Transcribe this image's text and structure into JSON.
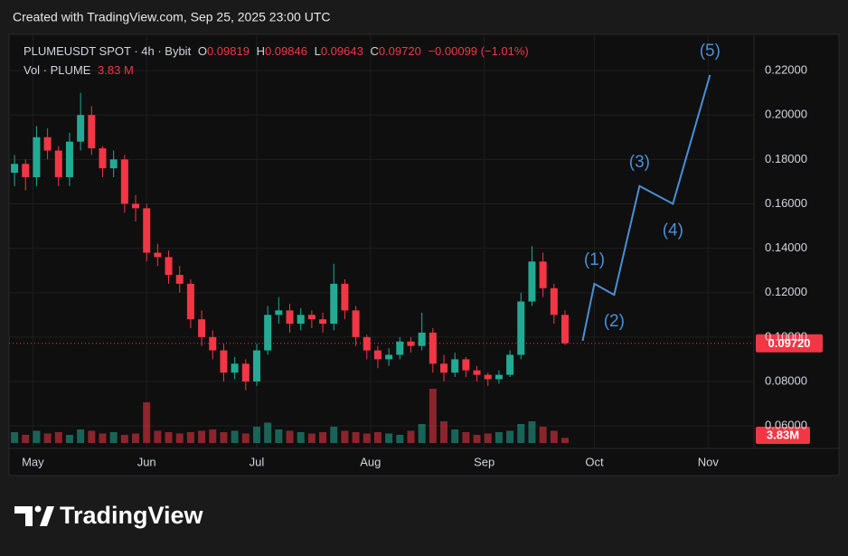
{
  "chart_data": {
    "type": "candlestick",
    "credit": "Created with TradingView.com, Sep 25, 2025 23:00 UTC",
    "symbol": "PLUMEUSDT SPOT · 4h · Bybit",
    "ohlc": [
      {
        "key": "O",
        "value": "0.09819"
      },
      {
        "key": "H",
        "value": "0.09846"
      },
      {
        "key": "L",
        "value": "0.09643"
      },
      {
        "key": "C",
        "value": "0.09720"
      }
    ],
    "change": "−0.00099 (−1.01%)",
    "volume_title": "Vol · PLUME",
    "volume_value": "3.83 M",
    "last_price_label": "0.09720",
    "last_volume_label": "3.83M",
    "brand": "TradingView",
    "up_color": "#22ab94",
    "down_color": "#f23645",
    "projection_color": "#4a8fd6",
    "x": [
      -5,
      -2,
      1,
      4,
      7,
      10,
      13,
      16,
      19,
      22,
      25,
      28,
      31,
      34,
      37,
      40,
      43,
      46,
      49,
      52,
      55,
      58,
      61,
      64,
      67,
      70,
      73,
      76,
      79,
      82,
      85,
      88,
      91,
      94,
      97,
      100,
      103,
      106,
      109,
      112,
      115,
      118,
      121,
      124,
      127,
      130,
      133,
      136,
      139,
      142,
      145
    ],
    "open": [
      0.174,
      0.178,
      0.172,
      0.19,
      0.184,
      0.172,
      0.188,
      0.2,
      0.185,
      0.176,
      0.18,
      0.16,
      0.158,
      0.138,
      0.136,
      0.128,
      0.124,
      0.108,
      0.1,
      0.094,
      0.084,
      0.088,
      0.08,
      0.094,
      0.11,
      0.112,
      0.106,
      0.11,
      0.108,
      0.106,
      0.124,
      0.112,
      0.1,
      0.094,
      0.09,
      0.092,
      0.098,
      0.096,
      0.102,
      0.088,
      0.084,
      0.09,
      0.085,
      0.083,
      0.081,
      0.083,
      0.092,
      0.116,
      0.134,
      0.122,
      0.11
    ],
    "high": [
      0.182,
      0.18,
      0.195,
      0.194,
      0.186,
      0.192,
      0.21,
      0.204,
      0.186,
      0.184,
      0.182,
      0.164,
      0.16,
      0.142,
      0.139,
      0.132,
      0.126,
      0.112,
      0.103,
      0.097,
      0.091,
      0.09,
      0.097,
      0.114,
      0.118,
      0.115,
      0.113,
      0.112,
      0.111,
      0.133,
      0.126,
      0.114,
      0.101,
      0.096,
      0.095,
      0.1,
      0.1,
      0.111,
      0.104,
      0.092,
      0.093,
      0.091,
      0.087,
      0.084,
      0.085,
      0.094,
      0.12,
      0.141,
      0.138,
      0.124,
      0.112
    ],
    "low": [
      0.168,
      0.166,
      0.168,
      0.18,
      0.168,
      0.168,
      0.184,
      0.182,
      0.172,
      0.172,
      0.156,
      0.152,
      0.134,
      0.132,
      0.124,
      0.12,
      0.104,
      0.096,
      0.09,
      0.08,
      0.081,
      0.076,
      0.078,
      0.092,
      0.106,
      0.102,
      0.103,
      0.104,
      0.102,
      0.103,
      0.108,
      0.096,
      0.09,
      0.086,
      0.087,
      0.09,
      0.093,
      0.094,
      0.084,
      0.08,
      0.082,
      0.082,
      0.08,
      0.078,
      0.079,
      0.082,
      0.09,
      0.114,
      0.118,
      0.106,
      0.0964
    ],
    "close": [
      0.178,
      0.172,
      0.19,
      0.184,
      0.172,
      0.188,
      0.2,
      0.185,
      0.176,
      0.18,
      0.16,
      0.158,
      0.138,
      0.136,
      0.128,
      0.124,
      0.108,
      0.1,
      0.094,
      0.084,
      0.088,
      0.08,
      0.094,
      0.11,
      0.112,
      0.106,
      0.11,
      0.108,
      0.106,
      0.124,
      0.112,
      0.1,
      0.094,
      0.09,
      0.092,
      0.098,
      0.096,
      0.102,
      0.088,
      0.084,
      0.09,
      0.085,
      0.083,
      0.081,
      0.083,
      0.092,
      0.116,
      0.134,
      0.122,
      0.11,
      0.0972
    ],
    "volume": [
      8,
      6,
      9,
      7,
      8,
      6,
      10,
      9,
      7,
      8,
      6,
      7,
      30,
      9,
      8,
      7,
      8,
      9,
      10,
      8,
      9,
      7,
      12,
      15,
      10,
      9,
      8,
      7,
      8,
      12,
      9,
      8,
      7,
      8,
      7,
      6,
      9,
      14,
      40,
      16,
      10,
      8,
      6,
      7,
      8,
      9,
      14,
      16,
      12,
      9,
      3.83
    ],
    "projection": {
      "x": [
        149.8,
        153,
        158.4,
        165.3,
        174.4,
        184.5
      ],
      "y": [
        0.0983,
        0.124,
        0.119,
        0.168,
        0.16,
        0.218
      ],
      "labels": [
        "(1)",
        "(2)",
        "(3)",
        "(4)",
        "(5)"
      ]
    },
    "xlim": [
      -6,
      196
    ],
    "ylim": [
      0.0523,
      0.2355
    ],
    "xticks": [
      {
        "value": 0,
        "label": "May"
      },
      {
        "value": 31,
        "label": "Jun"
      },
      {
        "value": 61,
        "label": "Jul"
      },
      {
        "value": 92,
        "label": "Aug"
      },
      {
        "value": 123,
        "label": "Sep"
      },
      {
        "value": 153,
        "label": "Oct"
      },
      {
        "value": 184,
        "label": "Nov"
      }
    ],
    "yticks": [
      {
        "value": 0.06,
        "label": "0.06000"
      },
      {
        "value": 0.08,
        "label": "0.08000"
      },
      {
        "value": 0.1,
        "label": "0.10000"
      },
      {
        "value": 0.12,
        "label": "0.12000"
      },
      {
        "value": 0.14,
        "label": "0.14000"
      },
      {
        "value": 0.16,
        "label": "0.16000"
      },
      {
        "value": 0.18,
        "label": "0.18000"
      },
      {
        "value": 0.2,
        "label": "0.20000"
      },
      {
        "value": 0.22,
        "label": "0.22000"
      }
    ],
    "grid": true
  }
}
